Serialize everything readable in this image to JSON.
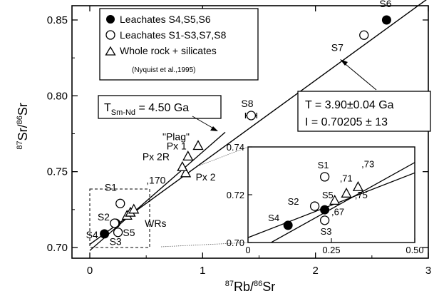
{
  "chart_data": {
    "type": "scatter",
    "xlabel_parts": {
      "sup1": "87",
      "base1": "Rb/",
      "sup2": "86",
      "base2": "Sr"
    },
    "ylabel_parts": {
      "sup1": "87",
      "base1": "Sr/",
      "sup2": "86",
      "base2": "Sr"
    },
    "xlim": [
      0,
      3
    ],
    "ylim": [
      0.7,
      0.86
    ],
    "xticks": [
      0,
      1,
      2,
      3
    ],
    "yticks": [
      0.7,
      0.75,
      0.8,
      0.85
    ],
    "xtick_labels": [
      "0",
      "1",
      "2",
      "3"
    ],
    "ytick_labels": [
      "0.70",
      "0.75",
      "0.80",
      "0.85"
    ],
    "legend": {
      "placement": "top-left",
      "entries": [
        {
          "marker": "filled-circle",
          "label": "Leachates S4,S5,S6"
        },
        {
          "marker": "open-circle",
          "label": "Leachates S1-S3,S7,S8"
        },
        {
          "marker": "open-triangle",
          "label": "Whole rock + silicates"
        }
      ],
      "citation": "(Nyquist et al.,1995)"
    },
    "series": [
      {
        "name": "Leachates S4,S5,S6",
        "marker": "filled-circle",
        "points": [
          {
            "x": 0.13,
            "y": 0.709,
            "label": "S4"
          },
          {
            "x": 0.23,
            "y": 0.716,
            "label": "S5"
          },
          {
            "x": 2.63,
            "y": 0.85,
            "label": "S6"
          }
        ]
      },
      {
        "name": "Leachates S1-S3,S7,S8",
        "marker": "open-circle",
        "points": [
          {
            "x": 0.27,
            "y": 0.729,
            "label": "S1"
          },
          {
            "x": 0.22,
            "y": 0.716,
            "label": "S2"
          },
          {
            "x": 0.25,
            "y": 0.71,
            "label": "S3"
          },
          {
            "x": 2.43,
            "y": 0.84,
            "label": "S7"
          },
          {
            "x": 1.43,
            "y": 0.787,
            "label": "S8",
            "xerr": 0.05
          }
        ]
      },
      {
        "name": "Whole rock + silicates",
        "marker": "open-triangle",
        "points": [
          {
            "x": 0.85,
            "y": 0.749,
            "label": "Px 2"
          },
          {
            "x": 0.82,
            "y": 0.753,
            "label": "Px 2R"
          },
          {
            "x": 0.87,
            "y": 0.76,
            "label": "Px 1"
          },
          {
            "x": 0.96,
            "y": 0.767,
            "label": "\"Plag\""
          },
          {
            "x": 0.33,
            "y": 0.721,
            "label": ""
          },
          {
            "x": 0.36,
            "y": 0.723,
            "label": ""
          },
          {
            "x": 0.39,
            "y": 0.725,
            "label": ""
          }
        ]
      }
    ],
    "lines": [
      {
        "name": "Rb-Sr isochron",
        "x": [
          0,
          3
        ],
        "y": [
          0.70205,
          0.8643
        ]
      },
      {
        "name": "Sm-Nd reference",
        "x": [
          0,
          1.2
        ],
        "y": [
          0.698,
          0.776
        ]
      }
    ],
    "annotations": {
      "wrs_label": "WRs",
      "sample_170": ",170",
      "sm_nd_box": {
        "prefix": "T",
        "sub": "Sm-Nd",
        "suffix": " = 4.50 Ga"
      },
      "age_box": {
        "line1": "T = 3.90±0.04 Ga",
        "line2": "I = 0.70205 ± 13"
      }
    },
    "inset": {
      "xlim": [
        0,
        0.5
      ],
      "ylim": [
        0.7,
        0.74
      ],
      "xtick_labels": [
        "0",
        "0.25",
        "0.50"
      ],
      "ytick_labels": [
        "0.70",
        "0.72",
        "0.74"
      ],
      "filled": [
        {
          "x": 0.12,
          "y": 0.7072,
          "label": "S4"
        },
        {
          "x": 0.23,
          "y": 0.7137,
          "label": ""
        }
      ],
      "open": [
        {
          "x": 0.23,
          "y": 0.7275,
          "label": "S1"
        },
        {
          "x": 0.2,
          "y": 0.7152,
          "label": "S2"
        },
        {
          "x": 0.23,
          "y": 0.7093,
          "label": "S3"
        }
      ],
      "triangles": [
        {
          "x": 0.26,
          "y": 0.7175
        },
        {
          "x": 0.295,
          "y": 0.7205
        },
        {
          "x": 0.33,
          "y": 0.7232
        }
      ],
      "text_labels": [
        {
          "text": "S5",
          "x": 0.222,
          "y": 0.7185
        },
        {
          "text": ",71",
          "x": 0.275,
          "y": 0.7255
        },
        {
          "text": ",73",
          "x": 0.34,
          "y": 0.7315
        },
        {
          "text": ",75",
          "x": 0.32,
          "y": 0.7185
        },
        {
          "text": ",67",
          "x": 0.25,
          "y": 0.7115
        }
      ]
    }
  }
}
